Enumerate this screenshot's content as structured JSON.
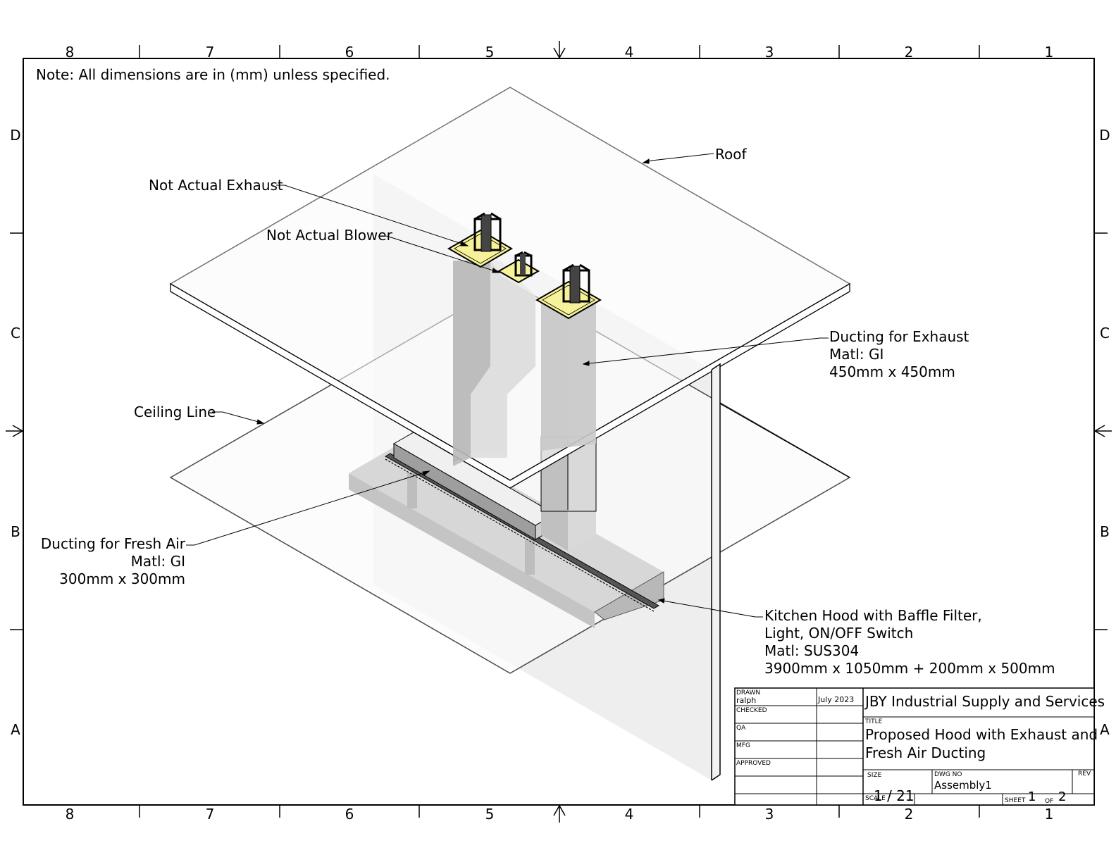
{
  "note": "Note: All dimensions are in (mm) unless specified.",
  "zones": {
    "columns": [
      "8",
      "7",
      "6",
      "5",
      "4",
      "3",
      "2",
      "1"
    ],
    "rows": [
      "D",
      "C",
      "B",
      "A"
    ]
  },
  "callouts": {
    "roof": "Roof",
    "not_actual_exhaust": "Not Actual Exhaust",
    "not_actual_blower": "Not Actual Blower",
    "ceiling_line": "Ceiling Line",
    "exhaust_ducting": [
      "Ducting for Exhaust",
      "Matl: GI",
      "450mm x 450mm"
    ],
    "fresh_air_ducting": [
      "Ducting for Fresh Air",
      "Matl: GI",
      "300mm x 300mm"
    ],
    "kitchen_hood": [
      "Kitchen Hood with Baffle Filter,",
      "Light, ON/OFF Switch",
      "Matl: SUS304",
      "3900mm x 1050mm + 200mm x 500mm"
    ]
  },
  "title_block": {
    "drawn_label": "DRAWN",
    "drawn_by": "ralph",
    "drawn_date": "July 2023",
    "checked_label": "CHECKED",
    "qa_label": "QA",
    "mfg_label": "MFG",
    "approved_label": "APPROVED",
    "company": "JBY Industrial Supply and Services",
    "title_label": "TITLE",
    "title_line1": "Proposed Hood with Exhaust and",
    "title_line2": "Fresh Air Ducting",
    "size_label": "SIZE",
    "dwg_no_label": "DWG NO",
    "dwg_no": "Assembly1",
    "rev_label": "REV",
    "scale_label": "SCALE",
    "scale": "1 / 21",
    "sheet_label": "SHEET",
    "sheet_no": "1",
    "of_label": "OF",
    "sheet_total": "2"
  },
  "colors": {
    "plate_fill": "#fbfbfb",
    "duct_light": "#d9d9d9",
    "duct_mid": "#c2c2c2",
    "duct_dark": "#a9a9a9",
    "wall": "#ebebeb",
    "fan_base": "#f6f29a"
  }
}
